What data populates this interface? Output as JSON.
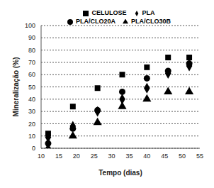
{
  "chart_data": {
    "type": "scatter",
    "x_label": "Tempo (dias)",
    "y_label": "Mineralização (%)",
    "x": [
      12,
      19,
      26,
      33,
      40,
      46,
      52
    ],
    "series": [
      {
        "name": "CELULOSE",
        "color": "#000000",
        "marker": "square",
        "values": [
          12,
          34,
          49,
          60,
          66,
          74,
          74
        ]
      },
      {
        "name": "PLA",
        "color": "#000000",
        "marker": "diamond",
        "values": [
          9,
          18,
          30,
          40,
          49,
          61,
          67
        ]
      },
      {
        "name": "PLA/CLO20A",
        "color": "#000000",
        "marker": "circle",
        "values": [
          4,
          16,
          31,
          46,
          57,
          63,
          69
        ]
      },
      {
        "name": "PLA/CLO30B",
        "color": "#000000",
        "marker": "triangle",
        "values": [
          0,
          10,
          21,
          34,
          40,
          46,
          46
        ]
      }
    ],
    "xlim": [
      10,
      55
    ],
    "xticks": [
      10,
      15,
      20,
      25,
      30,
      35,
      40,
      45,
      50,
      55
    ],
    "ylim": [
      0,
      100
    ],
    "yticks": [
      0,
      10,
      20,
      30,
      40,
      50,
      60,
      70,
      80,
      90,
      100
    ],
    "grid": true,
    "legend": "top"
  }
}
